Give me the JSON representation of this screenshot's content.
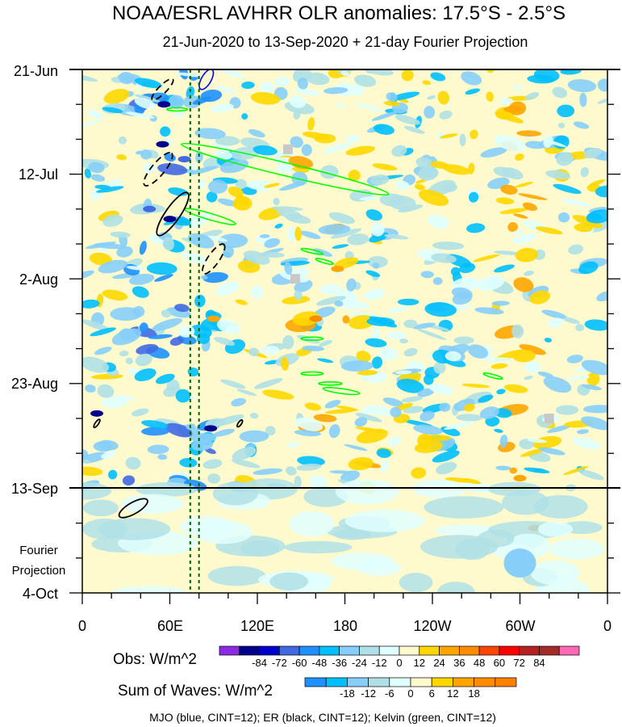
{
  "chart_data": {
    "type": "heatmap",
    "title": "NOAA/ESRL AVHRR OLR anomalies: 17.5°S - 2.5°S",
    "subtitle": "21-Jun-2020 to 13-Sep-2020 + 21-day Fourier Projection",
    "y_tick_labels": [
      "21-Jun",
      "12-Jul",
      "2-Aug",
      "23-Aug",
      "13-Sep",
      "4-Oct"
    ],
    "x_tick_labels": [
      "0",
      "60E",
      "120E",
      "180",
      "120W",
      "60W",
      "0"
    ],
    "projection_label": [
      "Fourier",
      "Projection"
    ],
    "obs_legend": {
      "label": "Obs: W/m^2",
      "colors": [
        "#8a2be2",
        "#00008b",
        "#0000cd",
        "#4169e1",
        "#1e90ff",
        "#00bfff",
        "#87cefa",
        "#b0e0e6",
        "#e0ffff",
        "#fffacd",
        "#ffd700",
        "#ffa500",
        "#ff8c00",
        "#ff4500",
        "#ff0000",
        "#b22222",
        "#a52a2a",
        "#ff69b4"
      ],
      "ticks": [
        "-84",
        "-72",
        "-60",
        "-48",
        "-36",
        "-24",
        "-12",
        "0",
        "12",
        "24",
        "36",
        "48",
        "60",
        "72",
        "84"
      ]
    },
    "waves_legend": {
      "label": "Sum of Waves: W/m^2",
      "colors": [
        "#1e90ff",
        "#00bfff",
        "#87cefa",
        "#b0e0e6",
        "#e0ffff",
        "#fffacd",
        "#ffd700",
        "#ffa500",
        "#ff8c00",
        "#ff7f00"
      ],
      "ticks": [
        "-18",
        "-12",
        "-6",
        "0",
        "6",
        "12",
        "18"
      ]
    },
    "footer": "MJO (blue, CINT=12); ER (black, CINT=12); Kelvin (green, CINT=12)",
    "x_range_deg": [
      0,
      360
    ],
    "y_range_days": [
      0,
      105
    ],
    "projection_start_day": 84,
    "reference_lines_deg": [
      74,
      80
    ],
    "feature_colors": {
      "mjo": "#0000ff",
      "er": "#000000",
      "kelvin": "#00ff00",
      "missing": "#c8c8c8"
    }
  }
}
